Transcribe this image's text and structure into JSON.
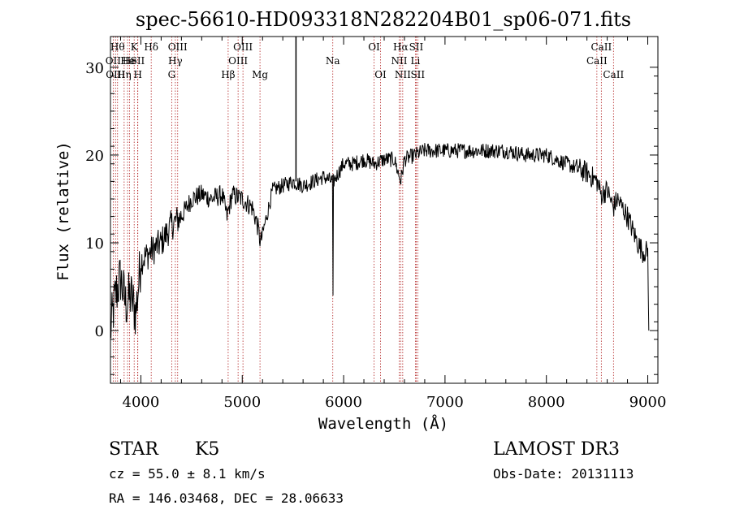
{
  "title": "spec-56610-HD093318N282204B01_sp06-071.fits",
  "colors": {
    "line": "#000000",
    "marker": "#b22222",
    "background": "#ffffff"
  },
  "chart_data": {
    "type": "line",
    "title": "spec-56610-HD093318N282204B01_sp06-071.fits",
    "xlabel": "Wavelength (Å)",
    "ylabel": "Flux (relative)",
    "xlim": [
      3700,
      9100
    ],
    "ylim": [
      -6,
      33.5
    ],
    "xticks": [
      4000,
      5000,
      6000,
      7000,
      8000,
      9000
    ],
    "yticks": [
      0,
      10,
      20,
      30
    ],
    "xtick_labels": [
      "4000",
      "5000",
      "6000",
      "7000",
      "8000",
      "9000"
    ],
    "ytick_labels": [
      "0",
      "10",
      "20",
      "30"
    ],
    "series_anchors": [
      {
        "x": 3700,
        "y": 0
      },
      {
        "x": 3750,
        "y": 4
      },
      {
        "x": 3800,
        "y": 6
      },
      {
        "x": 3850,
        "y": 3
      },
      {
        "x": 3900,
        "y": 4
      },
      {
        "x": 3950,
        "y": 2
      },
      {
        "x": 4000,
        "y": 8
      },
      {
        "x": 4100,
        "y": 9
      },
      {
        "x": 4200,
        "y": 10
      },
      {
        "x": 4300,
        "y": 12
      },
      {
        "x": 4400,
        "y": 13
      },
      {
        "x": 4500,
        "y": 15
      },
      {
        "x": 4600,
        "y": 15.5
      },
      {
        "x": 4700,
        "y": 15
      },
      {
        "x": 4800,
        "y": 15.5
      },
      {
        "x": 4850,
        "y": 13
      },
      {
        "x": 4900,
        "y": 15.5
      },
      {
        "x": 5000,
        "y": 15
      },
      {
        "x": 5100,
        "y": 14
      },
      {
        "x": 5150,
        "y": 12
      },
      {
        "x": 5180,
        "y": 10
      },
      {
        "x": 5200,
        "y": 11
      },
      {
        "x": 5300,
        "y": 16
      },
      {
        "x": 5400,
        "y": 16.5
      },
      {
        "x": 5500,
        "y": 17
      },
      {
        "x": 5600,
        "y": 16.5
      },
      {
        "x": 5700,
        "y": 17
      },
      {
        "x": 5800,
        "y": 17.5
      },
      {
        "x": 5890,
        "y": 17
      },
      {
        "x": 5895,
        "y": 4
      },
      {
        "x": 5900,
        "y": 17
      },
      {
        "x": 6000,
        "y": 19
      },
      {
        "x": 6100,
        "y": 19
      },
      {
        "x": 6200,
        "y": 19.5
      },
      {
        "x": 6300,
        "y": 19
      },
      {
        "x": 6400,
        "y": 19.5
      },
      {
        "x": 6500,
        "y": 19.5
      },
      {
        "x": 6563,
        "y": 17
      },
      {
        "x": 6600,
        "y": 19.5
      },
      {
        "x": 6700,
        "y": 20
      },
      {
        "x": 6800,
        "y": 20.5
      },
      {
        "x": 7000,
        "y": 20.5
      },
      {
        "x": 7200,
        "y": 20.5
      },
      {
        "x": 7400,
        "y": 20.5
      },
      {
        "x": 7600,
        "y": 20.5
      },
      {
        "x": 7800,
        "y": 20
      },
      {
        "x": 8000,
        "y": 20
      },
      {
        "x": 8200,
        "y": 19
      },
      {
        "x": 8400,
        "y": 18
      },
      {
        "x": 8500,
        "y": 17
      },
      {
        "x": 8540,
        "y": 15.5
      },
      {
        "x": 8600,
        "y": 16
      },
      {
        "x": 8660,
        "y": 14
      },
      {
        "x": 8700,
        "y": 15
      },
      {
        "x": 8800,
        "y": 13
      },
      {
        "x": 8900,
        "y": 10
      },
      {
        "x": 8950,
        "y": 9
      },
      {
        "x": 9000,
        "y": 9
      },
      {
        "x": 9010,
        "y": 0
      }
    ],
    "spike": {
      "x": 5530,
      "y_top": 33.5,
      "y_bottom": 17
    },
    "line_markers": [
      {
        "wl": 3727,
        "label": "OII",
        "row": 1
      },
      {
        "wl": 3750,
        "label": "OIII",
        "row": 2
      },
      {
        "wl": 3770,
        "label": "Hθ",
        "row": 0
      },
      {
        "wl": 3835,
        "label": "Hη",
        "row": 2
      },
      {
        "wl": 3869,
        "label": "He",
        "row": 1
      },
      {
        "wl": 3889,
        "label": "He",
        "row": 1
      },
      {
        "wl": 3934,
        "label": "K",
        "row": 0
      },
      {
        "wl": 3968,
        "label": "SII",
        "row": 1
      },
      {
        "wl": 3970,
        "label": "H",
        "row": 2
      },
      {
        "wl": 4102,
        "label": "Hδ",
        "row": 0
      },
      {
        "wl": 4304,
        "label": "G",
        "row": 2
      },
      {
        "wl": 4340,
        "label": "Hγ",
        "row": 1
      },
      {
        "wl": 4363,
        "label": "OIII",
        "row": 0
      },
      {
        "wl": 4861,
        "label": "Hβ",
        "row": 2
      },
      {
        "wl": 4959,
        "label": "OIII",
        "row": 1
      },
      {
        "wl": 5007,
        "label": "OIII",
        "row": 0
      },
      {
        "wl": 5175,
        "label": "Mg",
        "row": 2
      },
      {
        "wl": 5893,
        "label": "Na",
        "row": 1
      },
      {
        "wl": 6300,
        "label": "OI",
        "row": 0
      },
      {
        "wl": 6364,
        "label": "OI",
        "row": 2
      },
      {
        "wl": 6548,
        "label": "NII",
        "row": 1
      },
      {
        "wl": 6563,
        "label": "Hα",
        "row": 0
      },
      {
        "wl": 6583,
        "label": "NII",
        "row": 2
      },
      {
        "wl": 6708,
        "label": "Li",
        "row": 1
      },
      {
        "wl": 6716,
        "label": "SII",
        "row": 0
      },
      {
        "wl": 6731,
        "label": "SII",
        "row": 2
      },
      {
        "wl": 8498,
        "label": "CaII",
        "row": 1
      },
      {
        "wl": 8542,
        "label": "CaII",
        "row": 0
      },
      {
        "wl": 8662,
        "label": "CaII",
        "row": 2
      }
    ]
  },
  "footer": {
    "object_class": "STAR",
    "subclass": "K5",
    "survey": "LAMOST DR3",
    "redshift": "cz = 55.0 ± 8.1 km/s",
    "obs_date": "Obs-Date: 20131113",
    "coordinates": "RA = 146.03468, DEC =  28.06633"
  }
}
